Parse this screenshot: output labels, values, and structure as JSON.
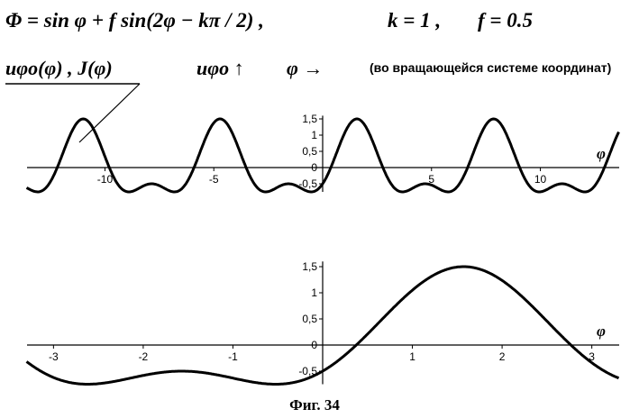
{
  "header": {
    "formula": "Φ = sin φ + f sin(2φ − kπ / 2) ,",
    "k": "k = 1 ,",
    "f": "f = 0.5",
    "legend_curves": "uφo(φ) , J(φ)",
    "legend_u": "uφo ↑",
    "legend_phi": "φ →",
    "note": "(во вращающейся системе координат)"
  },
  "caption": "Фиг. 34",
  "colors": {
    "ink": "#000000",
    "background": "#ffffff"
  },
  "chart_data": [
    {
      "type": "line",
      "function": "sin(x) + 0.5*sin(2x - pi/2)",
      "xlim": [
        -13.6,
        13.6
      ],
      "ylim": [
        -0.75,
        1.6
      ],
      "x_ticks": [
        -10,
        -5,
        5,
        10
      ],
      "y_ticks": [
        "1,5",
        "1",
        "0,5",
        "0",
        "-0,5"
      ],
      "y_tick_values": [
        1.5,
        1,
        0.5,
        0,
        -0.5
      ],
      "axis_label_x": "φ",
      "grid": false,
      "series": [
        {
          "x": [
            -13.6,
            -12.8,
            -12.0,
            -11.2,
            -10.4,
            -9.6,
            -8.8,
            -8.0,
            -7.2,
            -6.4,
            -5.6,
            -4.8,
            -4.0,
            -3.2,
            -2.4,
            -1.6,
            -0.8,
            0.0,
            0.8,
            1.6,
            2.4,
            3.2,
            4.0,
            4.8,
            5.6,
            6.4,
            7.2,
            8.0,
            8.8,
            9.6,
            10.4,
            11.2,
            12.0,
            12.8,
            13.6
          ],
          "y": [
            -0.67,
            -0.12,
            0.73,
            1.42,
            1.26,
            -0.02,
            -0.59,
            -0.51,
            -0.68,
            -0.41,
            0.53,
            1.46,
            1.26,
            0.07,
            -0.57,
            -0.5,
            -0.7,
            -0.5,
            0.52,
            1.45,
            1.35,
            0.13,
            -0.59,
            -0.49,
            -0.72,
            -0.24,
            0.74,
            1.47,
            1.07,
            -0.23,
            -0.49,
            -0.59,
            -0.67,
            -0.24,
            0.72
          ]
        }
      ]
    },
    {
      "type": "line",
      "function": "sin(x) + 0.5*sin(2x - pi/2)",
      "xlim": [
        -3.3,
        3.3
      ],
      "ylim": [
        -0.75,
        1.6
      ],
      "x_ticks": [
        -3,
        -2,
        -1,
        1,
        2,
        3
      ],
      "y_ticks": [
        "1,5",
        "1",
        "0,5",
        "0",
        "-0,5"
      ],
      "y_tick_values": [
        1.5,
        1,
        0.5,
        0,
        -0.5
      ],
      "axis_label_x": "φ",
      "grid": false,
      "series": [
        {
          "x": [
            -3.3,
            -3.0,
            -2.7,
            -2.4,
            -2.1,
            -1.8,
            -1.5,
            -1.2,
            -0.9,
            -0.6,
            -0.3,
            0.0,
            0.3,
            0.6,
            0.9,
            1.2,
            1.5,
            1.8,
            2.1,
            2.4,
            2.7,
            3.0,
            3.3
          ],
          "y": [
            -0.55,
            -0.62,
            -0.71,
            -0.72,
            -0.62,
            -0.52,
            -0.5,
            -0.56,
            -0.7,
            -0.74,
            -0.64,
            -0.5,
            -0.11,
            0.38,
            0.86,
            1.25,
            1.49,
            1.5,
            1.37,
            1.0,
            0.34,
            -0.34,
            -0.62
          ]
        }
      ]
    }
  ]
}
